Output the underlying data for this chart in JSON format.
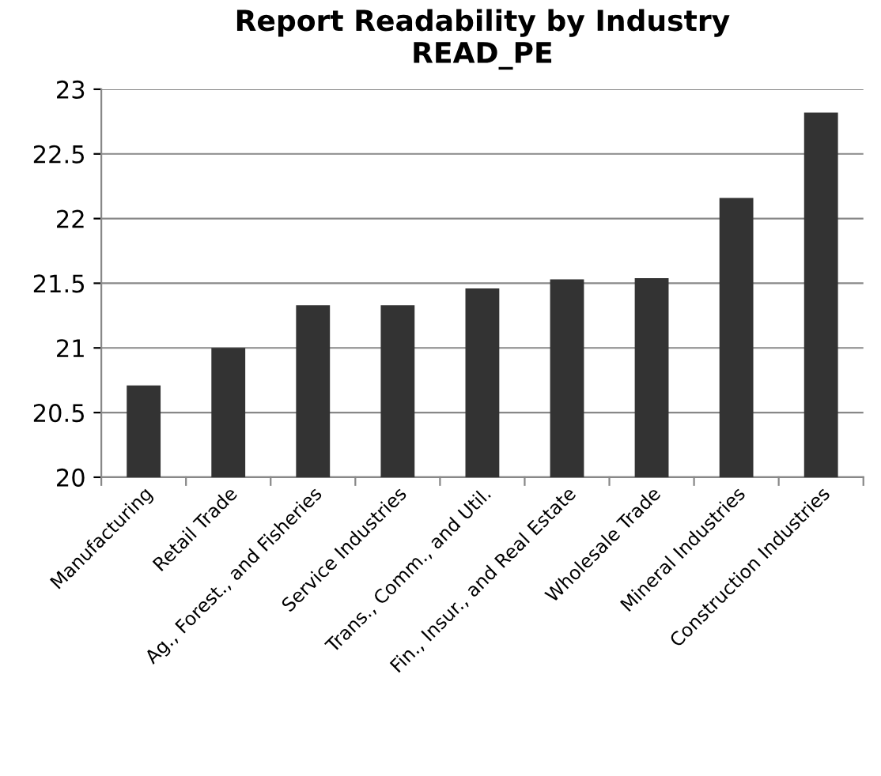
{
  "chart_data": {
    "type": "bar",
    "title": "Report Readability by Industry\nREAD_PE",
    "categories": [
      "Manufacturing",
      "Retail Trade",
      "Ag., Forest., and Fisheries",
      "Service Industries",
      "Trans., Comm., and Util.",
      "Fin., Insur., and Real Estate",
      "Wholesale Trade",
      "Mineral Industries",
      "Construction Industries"
    ],
    "values": [
      20.71,
      21.0,
      21.33,
      21.33,
      21.46,
      21.53,
      21.54,
      22.16,
      22.82
    ],
    "color": "#333333",
    "ylim": [
      20,
      23
    ],
    "yticks": [
      20,
      20.5,
      21,
      21.5,
      22,
      22.5,
      23
    ],
    "grid": "y",
    "legend": false
  }
}
